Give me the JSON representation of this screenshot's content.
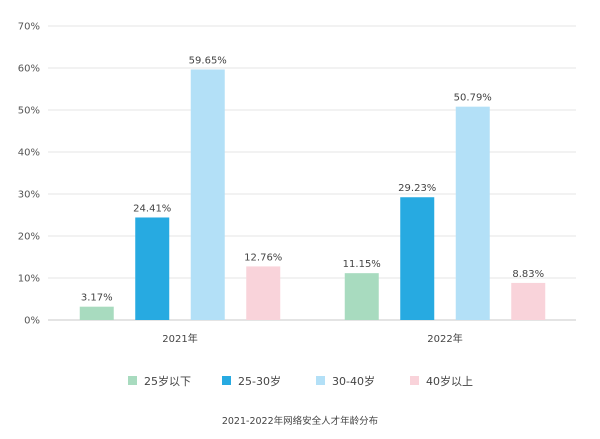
{
  "chart_data": {
    "type": "bar",
    "categories": [
      "2021年",
      "2022年"
    ],
    "series": [
      {
        "name": "25岁以下",
        "color": "#a8dbbf",
        "values": [
          3.17,
          11.15
        ]
      },
      {
        "name": "25-30岁",
        "color": "#27aae1",
        "values": [
          24.41,
          29.23
        ]
      },
      {
        "name": "30-40岁",
        "color": "#b3e0f7",
        "values": [
          59.65,
          50.79
        ]
      },
      {
        "name": "40岁以上",
        "color": "#f9d3da",
        "values": [
          12.76,
          8.83
        ]
      }
    ],
    "data_labels": [
      [
        "3.17%",
        "11.15%"
      ],
      [
        "24.41%",
        "29.23%"
      ],
      [
        "59.65%",
        "50.79%"
      ],
      [
        "12.76%",
        "8.83%"
      ]
    ],
    "y_ticks": [
      "0%",
      "10%",
      "20%",
      "30%",
      "40%",
      "50%",
      "60%",
      "70%"
    ],
    "ylim": [
      0,
      70
    ],
    "grid": true,
    "legend_position": "bottom",
    "caption": "2021-2022年网络安全人才年龄分布"
  }
}
